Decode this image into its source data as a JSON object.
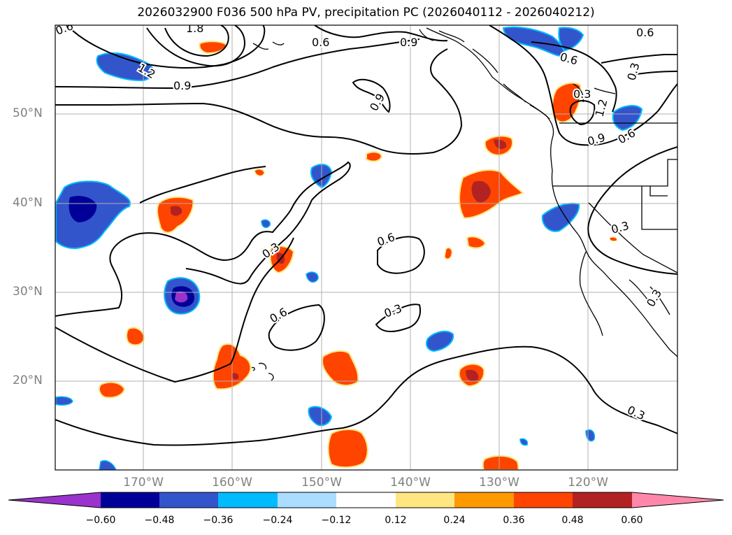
{
  "title": "2026032900 F036 500 hPa PV, precipitation PC (2026040112 - 2026040212)",
  "axes": {
    "lat_labels": [
      "50°N",
      "40°N",
      "30°N",
      "20°N"
    ],
    "lon_labels": [
      "170°W",
      "160°W",
      "150°W",
      "140°W",
      "130°W",
      "120°W"
    ]
  },
  "contour_labels": [
    "0.6",
    "1.8",
    "1.2",
    "0.9",
    "0.6",
    "0.9",
    "0.9",
    "0.6",
    "0.6",
    "0.3",
    "1.2",
    "0.9",
    "0.6",
    "0.3",
    "0.3",
    "0.6",
    "0.3",
    "0.6",
    "0.3",
    "0.3",
    "0.3"
  ],
  "colorbar": {
    "ticks": [
      "−0.60",
      "−0.48",
      "−0.36",
      "−0.24",
      "−0.12",
      "0.12",
      "0.24",
      "0.36",
      "0.48",
      "0.60"
    ],
    "colors": [
      "#9933cc",
      "#000099",
      "#3355cc",
      "#00bbff",
      "#aaddff",
      "#ffffff",
      "#ffe680",
      "#ff9900",
      "#ff4400",
      "#b22222",
      "#ff88aa"
    ]
  }
}
